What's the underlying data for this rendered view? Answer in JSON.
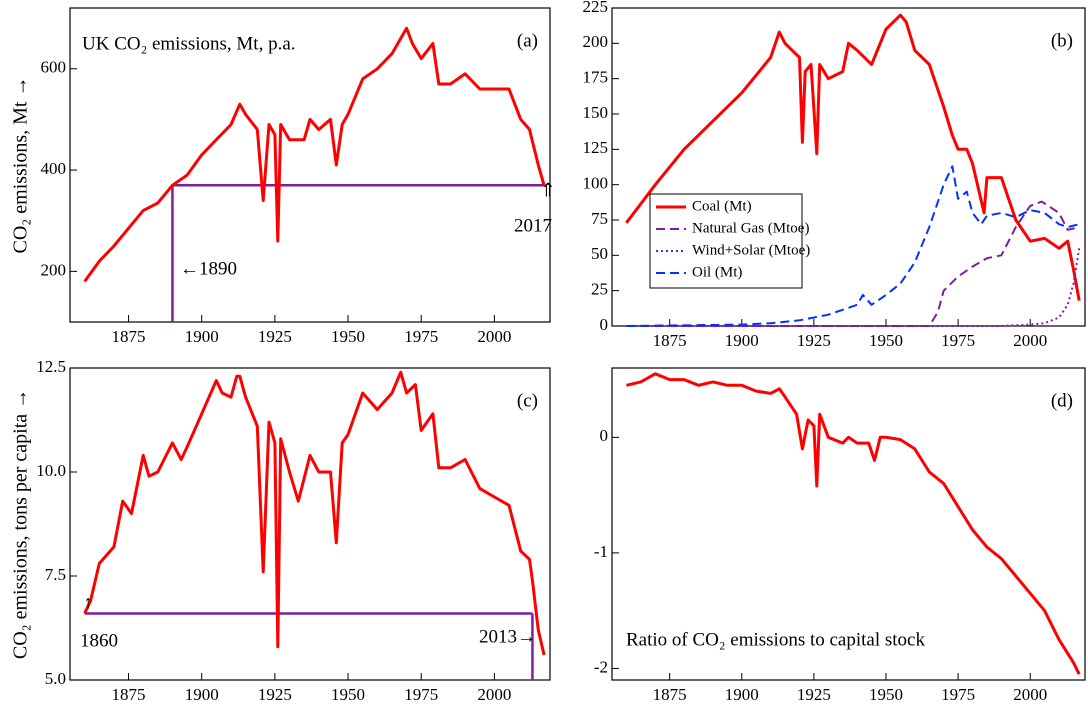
{
  "chart_data": [
    {
      "type": "line",
      "title": "UK CO₂ emissions, Mt, p.a.",
      "panel_label": "(a)",
      "ylabel": "CO₂ emissions,  Mt →",
      "xlim": [
        1855,
        2019
      ],
      "xticks": [
        1875,
        1900,
        1925,
        1950,
        1975,
        2000
      ],
      "ylim": [
        100,
        720
      ],
      "yticks": [
        200,
        400,
        600
      ],
      "series": [
        {
          "color": "#ff0000",
          "x": [
            1860,
            1865,
            1870,
            1875,
            1880,
            1885,
            1890,
            1895,
            1900,
            1905,
            1910,
            1913,
            1915,
            1919,
            1921,
            1923,
            1925,
            1926,
            1927,
            1930,
            1935,
            1937,
            1940,
            1944,
            1946,
            1948,
            1950,
            1955,
            1960,
            1965,
            1970,
            1972,
            1975,
            1979,
            1981,
            1985,
            1990,
            1995,
            2000,
            2005,
            2009,
            2012,
            2015,
            2017
          ],
          "values": [
            180,
            220,
            250,
            285,
            320,
            335,
            370,
            390,
            430,
            460,
            490,
            530,
            510,
            480,
            340,
            490,
            470,
            260,
            490,
            460,
            460,
            500,
            480,
            500,
            410,
            490,
            510,
            580,
            600,
            630,
            680,
            650,
            620,
            650,
            570,
            570,
            590,
            560,
            560,
            560,
            500,
            480,
            410,
            370
          ]
        }
      ],
      "reference": {
        "x": [
          1890,
          2017
        ],
        "y": 370,
        "drop": "start",
        "color": "#7b1fa2"
      },
      "annotations": [
        "←1890",
        "⇑",
        "2017"
      ]
    },
    {
      "type": "line",
      "panel_label": "(b)",
      "xlim": [
        1855,
        2019
      ],
      "xticks": [
        1875,
        1900,
        1925,
        1950,
        1975,
        2000
      ],
      "ylim": [
        0,
        225
      ],
      "yticks": [
        0,
        25,
        50,
        75,
        100,
        125,
        150,
        175,
        200,
        225
      ],
      "legend": "left",
      "series": [
        {
          "name": "Coal (Mt)",
          "color": "#ff0000",
          "dash": "none",
          "x": [
            1860,
            1870,
            1880,
            1890,
            1900,
            1910,
            1913,
            1915,
            1920,
            1921,
            1922,
            1924,
            1926,
            1927,
            1930,
            1935,
            1937,
            1940,
            1945,
            1950,
            1955,
            1957,
            1960,
            1965,
            1970,
            1973,
            1975,
            1978,
            1980,
            1984,
            1985,
            1990,
            1995,
            2000,
            2005,
            2010,
            2013,
            2015,
            2017
          ],
          "values": [
            73,
            100,
            125,
            145,
            165,
            190,
            208,
            200,
            190,
            130,
            180,
            185,
            122,
            185,
            175,
            180,
            200,
            195,
            185,
            210,
            220,
            215,
            195,
            185,
            155,
            135,
            125,
            125,
            115,
            80,
            105,
            105,
            75,
            60,
            62,
            55,
            60,
            40,
            18
          ]
        },
        {
          "name": "Natural Gas (Mtoe)",
          "color": "#7b1fa2",
          "dash": "dashed",
          "x": [
            1860,
            1965,
            1968,
            1970,
            1975,
            1980,
            1985,
            1990,
            1995,
            2000,
            2004,
            2010,
            2013,
            2017
          ],
          "values": [
            0,
            0,
            10,
            25,
            35,
            42,
            48,
            50,
            70,
            85,
            88,
            80,
            68,
            70
          ]
        },
        {
          "name": "Wind+Solar (Mtoe)",
          "color": "#7b1fa2",
          "dash": "dotted",
          "x": [
            1860,
            1990,
            2000,
            2005,
            2010,
            2013,
            2015,
            2017
          ],
          "values": [
            0,
            0,
            1,
            2,
            6,
            15,
            30,
            55
          ]
        },
        {
          "name": "Oil (Mt)",
          "color": "#0033ff",
          "dash": "dashed",
          "x": [
            1860,
            1900,
            1910,
            1920,
            1930,
            1940,
            1942,
            1945,
            1950,
            1955,
            1960,
            1965,
            1970,
            1973,
            1975,
            1978,
            1980,
            1983,
            1985,
            1990,
            1995,
            2000,
            2005,
            2010,
            2013,
            2017
          ],
          "values": [
            0,
            1,
            2,
            4,
            8,
            15,
            22,
            15,
            22,
            30,
            45,
            70,
            100,
            113,
            90,
            95,
            80,
            72,
            78,
            80,
            77,
            82,
            80,
            72,
            70,
            72
          ]
        }
      ]
    },
    {
      "type": "line",
      "panel_label": "(c)",
      "ylabel": "CO₂ emissions, tons per capita →",
      "xlim": [
        1855,
        2019
      ],
      "xticks": [
        1875,
        1900,
        1925,
        1950,
        1975,
        2000
      ],
      "ylim": [
        5,
        12.5
      ],
      "yticks": [
        {
          "value": 5,
          "label": "5.0"
        },
        {
          "value": 7.5,
          "label": "7.5"
        },
        {
          "value": 10,
          "label": "10.0"
        },
        {
          "value": 12.5,
          "label": "12.5"
        }
      ],
      "series": [
        {
          "color": "#ff0000",
          "x": [
            1860,
            1862,
            1865,
            1870,
            1873,
            1876,
            1880,
            1882,
            1885,
            1890,
            1893,
            1895,
            1900,
            1905,
            1907,
            1910,
            1912,
            1913,
            1915,
            1919,
            1921,
            1923,
            1925,
            1926,
            1927,
            1930,
            1933,
            1937,
            1940,
            1944,
            1946,
            1948,
            1950,
            1955,
            1960,
            1965,
            1968,
            1970,
            1973,
            1975,
            1979,
            1981,
            1985,
            1990,
            1995,
            2000,
            2005,
            2009,
            2012,
            2013,
            2015,
            2017
          ],
          "values": [
            6.6,
            6.9,
            7.8,
            8.2,
            9.3,
            9.0,
            10.4,
            9.9,
            10.0,
            10.7,
            10.3,
            10.6,
            11.4,
            12.2,
            11.9,
            11.8,
            12.3,
            12.3,
            11.8,
            11.1,
            7.6,
            11.2,
            10.7,
            5.8,
            10.8,
            10.0,
            9.3,
            10.4,
            10.0,
            10.0,
            8.3,
            10.7,
            10.9,
            11.9,
            11.5,
            11.9,
            12.4,
            11.9,
            12.1,
            11.0,
            11.4,
            10.1,
            10.1,
            10.3,
            9.6,
            9.4,
            9.2,
            8.1,
            7.9,
            7.4,
            6.2,
            5.6
          ]
        }
      ],
      "reference": {
        "x": [
          1860,
          2013
        ],
        "y": 6.6,
        "drop": "end",
        "color": "#7b1fa2"
      },
      "annotations": [
        "↑",
        "1860",
        "2013→"
      ]
    },
    {
      "type": "line",
      "panel_label": "(d)",
      "xlim": [
        1855,
        2019
      ],
      "xticks": [
        1875,
        1900,
        1925,
        1950,
        1975,
        2000
      ],
      "ylim": [
        -2.1,
        0.6
      ],
      "yticks": [
        -2,
        -1,
        0
      ],
      "series": [
        {
          "color": "#ff0000",
          "x": [
            1860,
            1865,
            1870,
            1875,
            1880,
            1885,
            1890,
            1895,
            1900,
            1905,
            1910,
            1913,
            1915,
            1919,
            1921,
            1923,
            1925,
            1926,
            1927,
            1930,
            1935,
            1937,
            1940,
            1944,
            1946,
            1948,
            1950,
            1955,
            1960,
            1965,
            1970,
            1975,
            1980,
            1985,
            1990,
            1995,
            2000,
            2005,
            2010,
            2015,
            2017
          ],
          "values": [
            0.45,
            0.48,
            0.55,
            0.5,
            0.5,
            0.45,
            0.48,
            0.45,
            0.45,
            0.4,
            0.38,
            0.42,
            0.35,
            0.2,
            -0.1,
            0.15,
            0.1,
            -0.42,
            0.2,
            0.0,
            -0.05,
            0.0,
            -0.05,
            -0.05,
            -0.2,
            0.0,
            0.0,
            -0.02,
            -0.1,
            -0.3,
            -0.4,
            -0.6,
            -0.8,
            -0.95,
            -1.05,
            -1.2,
            -1.35,
            -1.5,
            -1.75,
            -1.95,
            -2.05
          ]
        }
      ],
      "annotations": [
        "Ratio of CO₂ emissions to capital stock"
      ]
    }
  ]
}
